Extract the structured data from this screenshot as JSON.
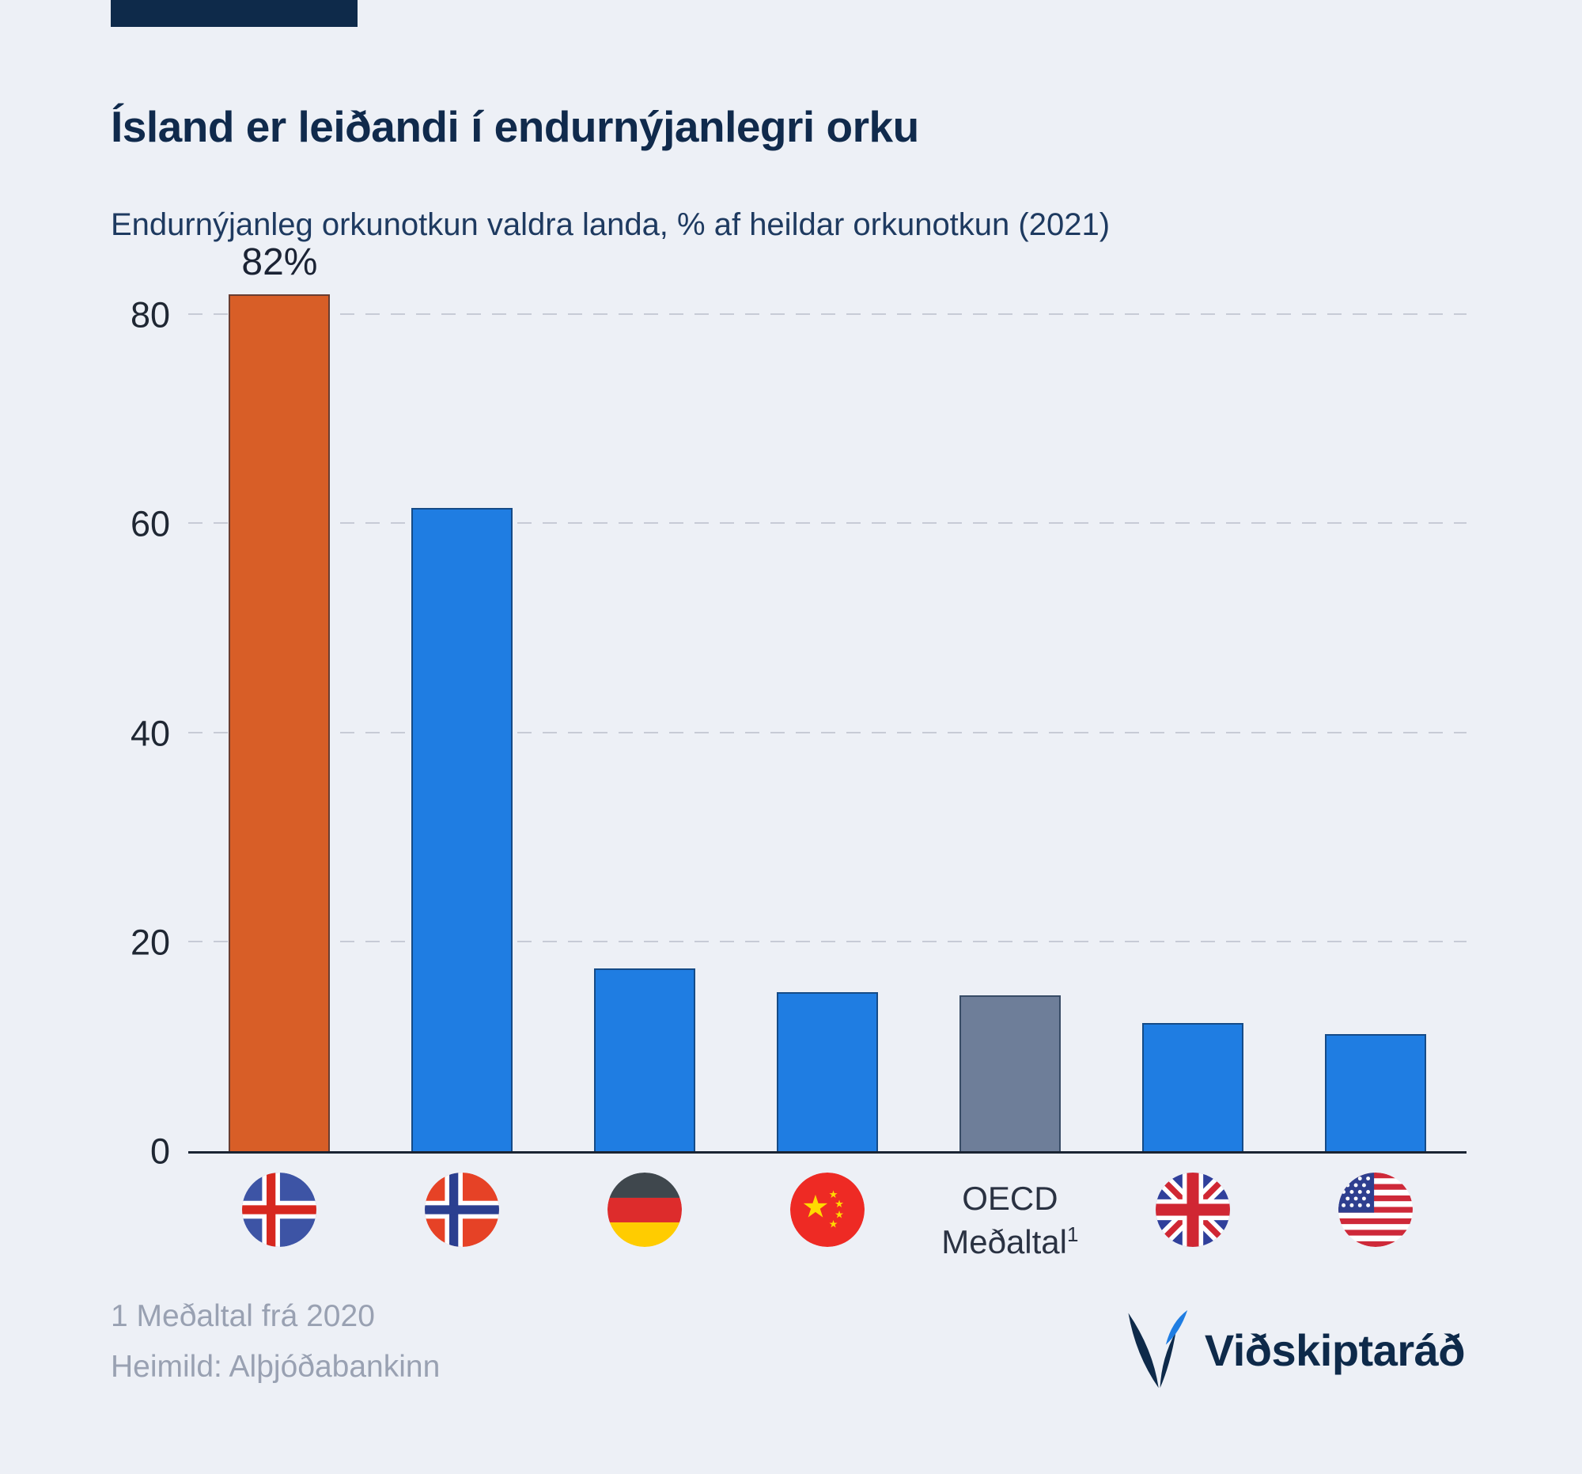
{
  "header": {
    "title": "Ísland er leiðandi í endurnýjanlegri orku",
    "subtitle": "Endurnýjanleg orkunotkun valdra landa, % af heildar orkunotkun (2021)"
  },
  "chart_data": {
    "type": "bar",
    "title": "Ísland er leiðandi í endurnýjanlegri orku",
    "subtitle": "Endurnýjanleg orkunotkun valdra landa, % af heildar orkunotkun (2021)",
    "categories": [
      "Ísland",
      "Noregur",
      "Þýskaland",
      "Kína",
      "OECD Meðaltal",
      "Bretland",
      "Bandaríkin"
    ],
    "values": [
      82,
      61.5,
      17.5,
      15.2,
      14.9,
      12.3,
      11.2
    ],
    "bar_colors": [
      "#D85E27",
      "#1F7DE2",
      "#1F7DE2",
      "#1F7DE2",
      "#6E7E99",
      "#1F7DE2",
      "#1F7DE2"
    ],
    "value_labels": [
      "82%",
      "",
      "",
      "",
      "",
      "",
      ""
    ],
    "x_icons": [
      "iceland-flag",
      "norway-flag",
      "germany-flag",
      "china-flag",
      "oecd-text",
      "uk-flag",
      "usa-flag"
    ],
    "oecd_label": {
      "line1": "OECD",
      "line2": "Meðaltal",
      "superscript": "1"
    },
    "ylabel": "",
    "xlabel": "",
    "yticks": [
      0,
      20,
      40,
      60,
      80
    ],
    "ylim": [
      0,
      82.5
    ],
    "grid": "dashed-horizontal",
    "legend": "none"
  },
  "footer": {
    "footnote": "1 Meðaltal frá 2020",
    "source": "Heimild: Alþjóðabankinn",
    "logo_text": "Viðskiptaráð"
  },
  "colors": {
    "accent_orange": "#D85E27",
    "bar_blue": "#1F7DE2",
    "oecd_gray": "#6E7E99",
    "brand_navy": "#0E2A4A",
    "background": "#EDF0F6"
  }
}
